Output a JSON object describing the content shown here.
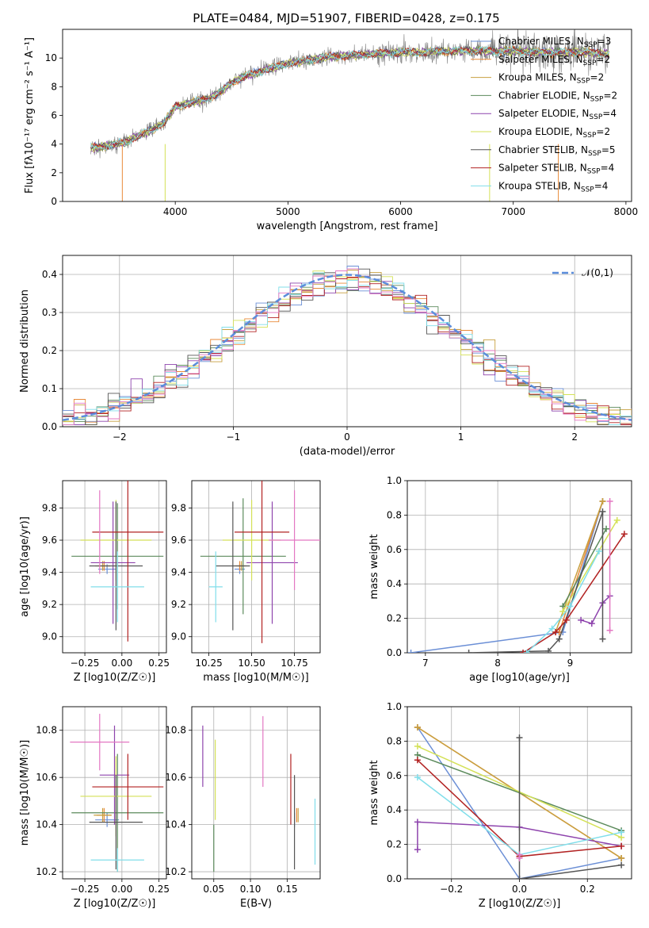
{
  "title": "PLATE=0484, MJD=51907, FIBERID=0428, z=0.175",
  "colors": {
    "Chabrier MILES": "#6b8fd6",
    "Salpeter MILES": "#e88a3a",
    "Kroupa MILES": "#c8a040",
    "Chabrier ELODIE": "#5b8a5b",
    "Salpeter ELODIE": "#8e44ad",
    "Kroupa ELODIE": "#d4e157",
    "Chabrier STELIB": "#555555",
    "Salpeter STELIB": "#b22222",
    "Kroupa STELIB": "#80deea",
    "Pink": "#e377c2",
    "Gaussian": "#5b8ddb"
  },
  "chart_data": [
    {
      "id": "spectrum",
      "type": "line",
      "xlabel": "wavelength [Angstrom, rest frame]",
      "ylabel": "Flux [fλ10⁻¹⁷ erg cm⁻² s⁻¹ A⁻¹]",
      "xlim": [
        3000,
        8050
      ],
      "ylim": [
        0,
        12
      ],
      "xticks": [
        4000,
        5000,
        6000,
        7000,
        8000
      ],
      "yticks": [
        0,
        2,
        4,
        6,
        8,
        10
      ],
      "grid": false,
      "legend_position": "top-right",
      "continuum": {
        "x": [
          3250,
          3400,
          3500,
          3600,
          3700,
          3800,
          3900,
          4000,
          4100,
          4200,
          4300,
          4400,
          4500,
          4600,
          4700,
          4800,
          4900,
          5000,
          5200,
          5400,
          5600,
          5800,
          6000,
          6200,
          6400,
          6600,
          6800,
          7000,
          7200,
          7400,
          7600,
          7850
        ],
        "y": [
          3.7,
          3.9,
          4.0,
          4.3,
          4.7,
          5.0,
          5.5,
          6.6,
          6.8,
          7.0,
          7.2,
          7.6,
          8.3,
          8.7,
          8.9,
          9.2,
          9.4,
          9.6,
          9.9,
          10.1,
          10.2,
          10.3,
          10.4,
          10.4,
          10.5,
          10.5,
          10.5,
          10.5,
          10.4,
          10.4,
          10.4,
          10.3
        ]
      },
      "series": [
        {
          "name": "Chabrier MILES",
          "nssp": "3"
        },
        {
          "name": "Salpeter MILES",
          "nssp": "2"
        },
        {
          "name": "Kroupa MILES",
          "nssp": "2"
        },
        {
          "name": "Chabrier ELODIE",
          "nssp": "2"
        },
        {
          "name": "Salpeter ELODIE",
          "nssp": "4"
        },
        {
          "name": "Kroupa ELODIE",
          "nssp": "2"
        },
        {
          "name": "Chabrier STELIB",
          "nssp": "5"
        },
        {
          "name": "Salpeter STELIB",
          "nssp": "4"
        },
        {
          "name": "Kroupa STELIB",
          "nssp": "4"
        }
      ]
    },
    {
      "id": "residuals",
      "type": "area",
      "xlabel": "(data-model)/error",
      "ylabel": "Normed distribution",
      "xlim": [
        -2.5,
        2.5
      ],
      "ylim": [
        0,
        0.45
      ],
      "xticks": [
        -2,
        -1,
        0,
        1,
        2
      ],
      "yticks": [
        0.0,
        0.1,
        0.2,
        0.3,
        0.4
      ],
      "grid": true,
      "legend": "𝒩(0,1)",
      "legend_position": "top-right",
      "bin_width": 0.1
    },
    {
      "id": "age-vs-Z",
      "type": "scatter",
      "xlabel": "Z [log10(Z/Z☉)]",
      "ylabel": "age  [log10(age/yr)]",
      "xlim": [
        -0.4,
        0.3
      ],
      "ylim": [
        8.9,
        9.97
      ],
      "xticks": [
        -0.25,
        0.0,
        0.25
      ],
      "yticks": [
        9.0,
        9.2,
        9.4,
        9.6,
        9.8
      ],
      "grid": true,
      "points": [
        {
          "series": "Chabrier MILES",
          "x": -0.1,
          "xerr": 0.06,
          "y": 9.42,
          "yerr": 0.03
        },
        {
          "series": "Salpeter MILES",
          "x": -0.12,
          "xerr": 0.04,
          "y": 9.44,
          "yerr": 0.03
        },
        {
          "series": "Kroupa MILES",
          "x": -0.13,
          "xerr": 0.05,
          "y": 9.44,
          "yerr": 0.03
        },
        {
          "series": "Chabrier ELODIE",
          "x": -0.03,
          "xerr": 0.31,
          "y": 9.5,
          "yerr": 0.33
        },
        {
          "series": "Salpeter ELODIE",
          "x": -0.06,
          "xerr": 0.15,
          "y": 9.46,
          "yerr": 0.38
        },
        {
          "series": "Kroupa ELODIE",
          "x": -0.04,
          "xerr": 0.24,
          "y": 9.6,
          "yerr": 0.25
        },
        {
          "series": "Chabrier STELIB",
          "x": -0.04,
          "xerr": 0.18,
          "y": 9.44,
          "yerr": 0.4
        },
        {
          "series": "Salpeter STELIB",
          "x": 0.04,
          "xerr": 0.24,
          "y": 9.65,
          "yerr": 0.68
        },
        {
          "series": "Kroupa STELIB",
          "x": -0.03,
          "xerr": 0.18,
          "y": 9.31,
          "yerr": 0.22
        },
        {
          "series": "Pink",
          "x": -0.15,
          "xerr": 0.0,
          "y": 9.65,
          "yerr": 0.26
        }
      ]
    },
    {
      "id": "age-vs-mass",
      "type": "scatter",
      "xlabel": "mass [log10(M/M☉)]",
      "ylabel": "",
      "xlim": [
        10.15,
        10.9
      ],
      "ylim": [
        8.9,
        9.97
      ],
      "xticks": [
        10.25,
        10.5,
        10.75
      ],
      "yticks": [
        9.0,
        9.2,
        9.4,
        9.6,
        9.8
      ],
      "grid": true,
      "points": [
        {
          "series": "Chabrier MILES",
          "x": 10.43,
          "xerr": 0.03,
          "y": 9.42,
          "yerr": 0.03
        },
        {
          "series": "Salpeter MILES",
          "x": 10.43,
          "xerr": 0.03,
          "y": 9.44,
          "yerr": 0.03
        },
        {
          "series": "Kroupa MILES",
          "x": 10.44,
          "xerr": 0.03,
          "y": 9.44,
          "yerr": 0.03
        },
        {
          "series": "Chabrier ELODIE",
          "x": 10.45,
          "xerr": 0.25,
          "y": 9.5,
          "yerr": 0.36
        },
        {
          "series": "Salpeter ELODIE",
          "x": 10.62,
          "xerr": 0.15,
          "y": 9.46,
          "yerr": 0.38
        },
        {
          "series": "Kroupa ELODIE",
          "x": 10.5,
          "xerr": 0.17,
          "y": 9.6,
          "yerr": 0.25
        },
        {
          "series": "Chabrier STELIB",
          "x": 10.39,
          "xerr": 0.1,
          "y": 9.44,
          "yerr": 0.4
        },
        {
          "series": "Salpeter STELIB",
          "x": 10.56,
          "xerr": 0.16,
          "y": 9.65,
          "yerr": 0.69
        },
        {
          "series": "Kroupa STELIB",
          "x": 10.29,
          "xerr": 0.04,
          "y": 9.31,
          "yerr": 0.22
        },
        {
          "series": "Pink",
          "x": 10.75,
          "xerr": 0.15,
          "y": 9.6,
          "yerr": 0.31
        }
      ]
    },
    {
      "id": "weight-vs-age",
      "type": "line",
      "xlabel": "age  [log10(age/yr)]",
      "ylabel": "mass weight",
      "xlim": [
        6.75,
        9.85
      ],
      "ylim": [
        0,
        1.0
      ],
      "xticks": [
        7,
        8,
        9
      ],
      "yticks": [
        0.0,
        0.2,
        0.4,
        0.6,
        0.8,
        1.0
      ],
      "grid": true,
      "series": [
        {
          "series": "Chabrier MILES",
          "x": [
            6.8,
            8.9,
            9.45
          ],
          "y": [
            0.0,
            0.12,
            0.88
          ]
        },
        {
          "series": "Salpeter MILES",
          "x": [
            8.85,
            9.45
          ],
          "y": [
            0.12,
            0.88
          ]
        },
        {
          "series": "Kroupa MILES",
          "x": [
            8.8,
            9.45
          ],
          "y": [
            0.12,
            0.88
          ]
        },
        {
          "series": "Chabrier ELODIE",
          "x": [
            8.9,
            9.5
          ],
          "y": [
            0.27,
            0.72
          ]
        },
        {
          "series": "Salpeter ELODIE",
          "x": [
            9.15,
            9.3,
            9.45,
            9.55
          ],
          "y": [
            0.19,
            0.17,
            0.29,
            0.33
          ]
        },
        {
          "series": "Kroupa ELODIE",
          "x": [
            8.9,
            9.65
          ],
          "y": [
            0.24,
            0.77
          ]
        },
        {
          "series": "Chabrier STELIB",
          "x": [
            7.6,
            8.7,
            8.85,
            9.45,
            9.45
          ],
          "y": [
            0.0,
            0.01,
            0.08,
            0.82,
            0.08
          ]
        },
        {
          "series": "Salpeter STELIB",
          "x": [
            8.35,
            8.8,
            8.95,
            9.75
          ],
          "y": [
            0.0,
            0.12,
            0.19,
            0.69
          ]
        },
        {
          "series": "Kroupa STELIB",
          "x": [
            8.4,
            8.75,
            9.0,
            9.4
          ],
          "y": [
            0.0,
            0.14,
            0.27,
            0.59
          ]
        },
        {
          "series": "Pink",
          "x": [
            9.55,
            9.55
          ],
          "y": [
            0.13,
            0.88
          ]
        }
      ]
    },
    {
      "id": "mass-vs-Z",
      "type": "scatter",
      "xlabel": "Z [log10(Z/Z☉)]",
      "ylabel": "mass [log10(M/M☉)]",
      "xlim": [
        -0.4,
        0.3
      ],
      "ylim": [
        10.17,
        10.9
      ],
      "xticks": [
        -0.25,
        0.0,
        0.25
      ],
      "yticks": [
        10.2,
        10.4,
        10.6,
        10.8
      ],
      "grid": true,
      "points": [
        {
          "series": "Chabrier MILES",
          "x": -0.1,
          "xerr": 0.08,
          "y": 10.42,
          "yerr": 0.03
        },
        {
          "series": "Salpeter MILES",
          "x": -0.12,
          "xerr": 0.05,
          "y": 10.44,
          "yerr": 0.03
        },
        {
          "series": "Kroupa MILES",
          "x": -0.13,
          "xerr": 0.06,
          "y": 10.44,
          "yerr": 0.03
        },
        {
          "series": "Chabrier ELODIE",
          "x": -0.03,
          "xerr": 0.31,
          "y": 10.45,
          "yerr": 0.25
        },
        {
          "series": "Salpeter ELODIE",
          "x": -0.05,
          "xerr": 0.1,
          "y": 10.61,
          "yerr": 0.21
        },
        {
          "series": "Kroupa ELODIE",
          "x": -0.04,
          "xerr": 0.24,
          "y": 10.52,
          "yerr": 0.17
        },
        {
          "series": "Chabrier STELIB",
          "x": -0.04,
          "xerr": 0.18,
          "y": 10.41,
          "yerr": 0.2
        },
        {
          "series": "Salpeter STELIB",
          "x": 0.04,
          "xerr": 0.24,
          "y": 10.56,
          "yerr": 0.14
        },
        {
          "series": "Kroupa STELIB",
          "x": -0.03,
          "xerr": 0.18,
          "y": 10.25,
          "yerr": 0.05
        },
        {
          "series": "Pink",
          "x": -0.15,
          "xerr": 0.2,
          "y": 10.75,
          "yerr": 0.12
        }
      ]
    },
    {
      "id": "mass-vs-EBV",
      "type": "scatter",
      "xlabel": "E(B-V)",
      "ylabel": "",
      "xlim": [
        0.02,
        0.195
      ],
      "ylim": [
        10.17,
        10.9
      ],
      "xticks": [
        0.05,
        0.1,
        0.15
      ],
      "yticks": [
        10.2,
        10.4,
        10.6,
        10.8
      ],
      "grid": true,
      "points": [
        {
          "series": "Chabrier MILES",
          "x": 0.16,
          "xerr": 0,
          "y": 10.42,
          "yerr": 0.03
        },
        {
          "series": "Salpeter MILES",
          "x": 0.163,
          "xerr": 0,
          "y": 10.44,
          "yerr": 0.03
        },
        {
          "series": "Kroupa MILES",
          "x": 0.165,
          "xerr": 0,
          "y": 10.44,
          "yerr": 0.03
        },
        {
          "series": "Chabrier ELODIE",
          "x": 0.05,
          "xerr": 0,
          "y": 10.3,
          "yerr": 0.1
        },
        {
          "series": "Salpeter ELODIE",
          "x": 0.035,
          "xerr": 0,
          "y": 10.69,
          "yerr": 0.13
        },
        {
          "series": "Kroupa ELODIE",
          "x": 0.052,
          "xerr": 0,
          "y": 10.59,
          "yerr": 0.17
        },
        {
          "series": "Chabrier STELIB",
          "x": 0.16,
          "xerr": 0,
          "y": 10.41,
          "yerr": 0.2
        },
        {
          "series": "Salpeter STELIB",
          "x": 0.155,
          "xerr": 0,
          "y": 10.55,
          "yerr": 0.15
        },
        {
          "series": "Kroupa STELIB",
          "x": 0.188,
          "xerr": 0,
          "y": 10.37,
          "yerr": 0.14
        },
        {
          "series": "Pink",
          "x": 0.117,
          "xerr": 0,
          "y": 10.71,
          "yerr": 0.15
        }
      ]
    },
    {
      "id": "weight-vs-Z",
      "type": "line",
      "xlabel": "Z [log10(Z/Z☉)]",
      "ylabel": "mass weight",
      "xlim": [
        -0.33,
        0.33
      ],
      "ylim": [
        0,
        1.0
      ],
      "xticks": [
        -0.2,
        0.0,
        0.2
      ],
      "yticks": [
        0.0,
        0.2,
        0.4,
        0.6,
        0.8,
        1.0
      ],
      "grid": true,
      "series": [
        {
          "series": "Chabrier MILES",
          "x": [
            -0.3,
            0.0,
            0.3
          ],
          "y": [
            0.88,
            0.0,
            0.12
          ]
        },
        {
          "series": "Salpeter MILES",
          "x": [
            -0.3,
            0.3
          ],
          "y": [
            0.88,
            0.12
          ]
        },
        {
          "series": "Kroupa MILES",
          "x": [
            -0.3,
            0.3
          ],
          "y": [
            0.88,
            0.12
          ]
        },
        {
          "series": "Chabrier ELODIE",
          "x": [
            -0.3,
            0.3
          ],
          "y": [
            0.72,
            0.28
          ]
        },
        {
          "series": "Salpeter ELODIE",
          "x": [
            -0.3,
            -0.3,
            0.0,
            0.3
          ],
          "y": [
            0.17,
            0.33,
            0.3,
            0.19
          ]
        },
        {
          "series": "Kroupa ELODIE",
          "x": [
            -0.3,
            0.3
          ],
          "y": [
            0.77,
            0.24
          ]
        },
        {
          "series": "Chabrier STELIB",
          "x": [
            0.0,
            0.0,
            0.0,
            0.3
          ],
          "y": [
            0.82,
            0.13,
            0.0,
            0.08
          ]
        },
        {
          "series": "Salpeter STELIB",
          "x": [
            -0.3,
            0.0,
            0.3
          ],
          "y": [
            0.69,
            0.13,
            0.19
          ]
        },
        {
          "series": "Kroupa STELIB",
          "x": [
            -0.3,
            0.0,
            0.3
          ],
          "y": [
            0.59,
            0.14,
            0.27
          ]
        },
        {
          "series": "Pink",
          "x": [
            0.0,
            0.0
          ],
          "y": [
            0.12,
            0.14
          ]
        }
      ]
    }
  ]
}
